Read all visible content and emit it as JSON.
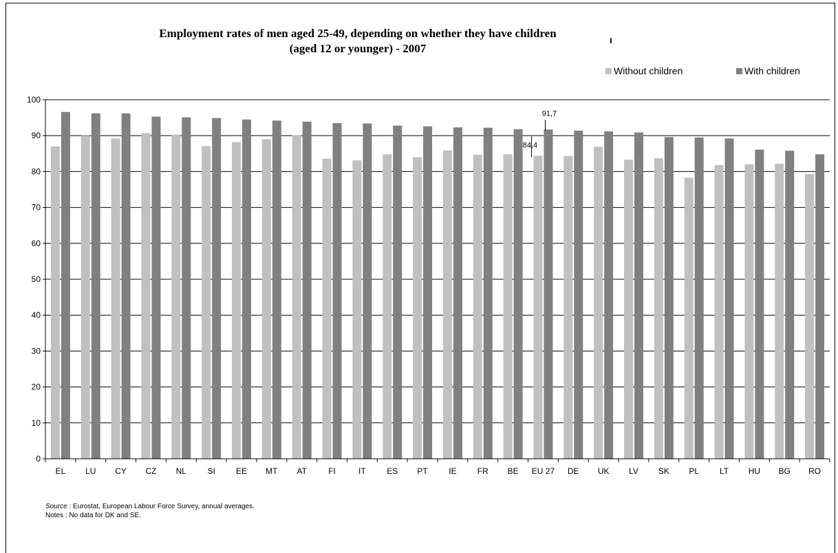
{
  "title_line1": "Employment rates of men aged 25-49, depending on whether  they have children",
  "title_line2": "(aged 12 or younger) - 2007",
  "stray_mark": "ı",
  "legend": {
    "without_label": "Without children",
    "with_label": "With children"
  },
  "colors": {
    "without": "#c0c0c0",
    "with": "#808080"
  },
  "source_label": "Source",
  "source_text": " : Eurostat, European Labour Force Survey, annual averages.",
  "notes_text": "Notes : No data for DK and SE.",
  "chart_data": {
    "type": "bar",
    "categories": [
      "EL",
      "LU",
      "CY",
      "CZ",
      "NL",
      "SI",
      "EE",
      "MT",
      "AT",
      "FI",
      "IT",
      "ES",
      "PT",
      "IE",
      "FR",
      "BE",
      "EU 27",
      "DE",
      "UK",
      "LV",
      "SK",
      "PL",
      "LT",
      "HU",
      "BG",
      "RO"
    ],
    "series": [
      {
        "name": "Without children",
        "values": [
          87.0,
          90.0,
          89.2,
          90.7,
          90.3,
          87.1,
          88.2,
          89.0,
          90.1,
          83.6,
          83.1,
          84.8,
          84.0,
          85.9,
          84.7,
          84.8,
          84.4,
          84.3,
          86.9,
          83.3,
          83.7,
          78.3,
          81.8,
          82.0,
          82.2,
          79.3
        ]
      },
      {
        "name": "With children",
        "values": [
          96.6,
          96.2,
          96.2,
          95.3,
          95.1,
          94.9,
          94.5,
          94.2,
          93.9,
          93.5,
          93.4,
          92.8,
          92.6,
          92.3,
          92.2,
          91.8,
          91.7,
          91.4,
          91.2,
          90.9,
          89.6,
          89.5,
          89.2,
          86.1,
          85.8,
          84.8
        ]
      }
    ],
    "annotations": [
      {
        "category": "EU 27",
        "series": "Without children",
        "text": "84,4"
      },
      {
        "category": "EU 27",
        "series": "With children",
        "text": "91,7"
      }
    ],
    "ylim": [
      0,
      100
    ],
    "yticks": [
      0,
      10,
      20,
      30,
      40,
      50,
      60,
      70,
      80,
      90,
      100
    ],
    "grid": true,
    "legend_position": "top-right"
  }
}
